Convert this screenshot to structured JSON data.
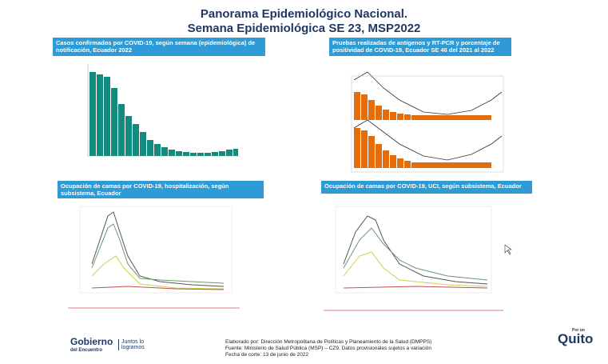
{
  "title": [
    "Panorama Epidemiológico Nacional.",
    "Semana Epidemiológica SE 23, MSP2022"
  ],
  "panels": [
    {
      "header": "Casos confirmados por COVID-19, según semana (epidemiológica) de notificación, Ecuador 2022"
    },
    {
      "header": "Pruebas realizadas de antígenos y RT-PCR y porcentaje de positividad de COVID-19, Ecuador SE 46 del 2021 al 2022"
    },
    {
      "header": "Ocupación de camas por COVID-19, hospitalización, según subsistema, Ecuador"
    },
    {
      "header": "Ocupación de camas por COVID-19, UCI, según subsistema, Ecuador"
    }
  ],
  "footer": {
    "elaborado": "Elaborado por: Dirección Metropolitana de Políticas y Planeamiento de la Salud (DMPPS)",
    "fuente": "Fuente: Ministerio de Salud Pública (MSP) – CZ9. Datos provisionales sujetos a variación",
    "fecha": "Fecha de corte: 13 de junio de 2022"
  },
  "logos": {
    "gobierno": "Gobierno",
    "encuentro": "del Encuentro",
    "juntos": "Juntos lo logramos",
    "porun": "Por un",
    "quito": "Quito"
  }
}
